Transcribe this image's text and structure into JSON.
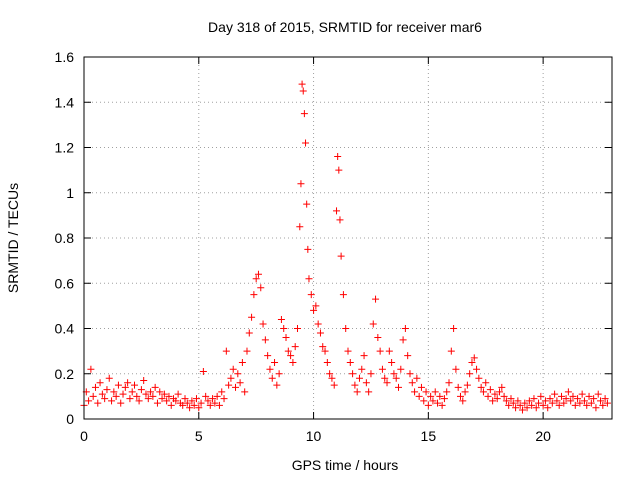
{
  "chart_data": {
    "type": "scatter",
    "title": "Day 318 of 2015, SRMTID for receiver mar6",
    "xlabel": "GPS time / hours",
    "ylabel": "SRMTID / TECUs",
    "xlim": [
      0,
      23
    ],
    "ylim": [
      0,
      1.6
    ],
    "xticks": [
      0,
      5,
      10,
      15,
      20
    ],
    "yticks": [
      0,
      0.2,
      0.4,
      0.6,
      0.8,
      1,
      1.2,
      1.4,
      1.6
    ],
    "xtick_labels": [
      "0",
      "5",
      "10",
      "15",
      "20"
    ],
    "ytick_labels": [
      "0",
      "0.2",
      "0.4",
      "0.6",
      "0.8",
      "1",
      "1.2",
      "1.4",
      "1.6"
    ],
    "grid": true,
    "marker": "+",
    "color": "#ff0000",
    "series": [
      {
        "name": "mar6",
        "points": [
          [
            0.0,
            0.06
          ],
          [
            0.1,
            0.12
          ],
          [
            0.2,
            0.08
          ],
          [
            0.3,
            0.22
          ],
          [
            0.4,
            0.1
          ],
          [
            0.5,
            0.14
          ],
          [
            0.6,
            0.07
          ],
          [
            0.7,
            0.16
          ],
          [
            0.8,
            0.11
          ],
          [
            0.9,
            0.09
          ],
          [
            1.0,
            0.13
          ],
          [
            1.1,
            0.18
          ],
          [
            1.2,
            0.08
          ],
          [
            1.3,
            0.12
          ],
          [
            1.4,
            0.1
          ],
          [
            1.5,
            0.15
          ],
          [
            1.6,
            0.07
          ],
          [
            1.7,
            0.11
          ],
          [
            1.8,
            0.14
          ],
          [
            1.9,
            0.16
          ],
          [
            2.0,
            0.09
          ],
          [
            2.1,
            0.12
          ],
          [
            2.2,
            0.15
          ],
          [
            2.3,
            0.1
          ],
          [
            2.4,
            0.08
          ],
          [
            2.5,
            0.13
          ],
          [
            2.6,
            0.17
          ],
          [
            2.7,
            0.11
          ],
          [
            2.8,
            0.09
          ],
          [
            2.9,
            0.12
          ],
          [
            3.0,
            0.1
          ],
          [
            3.1,
            0.14
          ],
          [
            3.2,
            0.07
          ],
          [
            3.3,
            0.12
          ],
          [
            3.4,
            0.09
          ],
          [
            3.5,
            0.11
          ],
          [
            3.6,
            0.08
          ],
          [
            3.7,
            0.1
          ],
          [
            3.8,
            0.06
          ],
          [
            3.9,
            0.09
          ],
          [
            4.0,
            0.08
          ],
          [
            4.1,
            0.11
          ],
          [
            4.2,
            0.07
          ],
          [
            4.3,
            0.06
          ],
          [
            4.4,
            0.09
          ],
          [
            4.5,
            0.07
          ],
          [
            4.6,
            0.05
          ],
          [
            4.7,
            0.08
          ],
          [
            4.8,
            0.06
          ],
          [
            4.9,
            0.09
          ],
          [
            5.0,
            0.05
          ],
          [
            5.1,
            0.07
          ],
          [
            5.2,
            0.21
          ],
          [
            5.3,
            0.1
          ],
          [
            5.4,
            0.08
          ],
          [
            5.5,
            0.06
          ],
          [
            5.6,
            0.09
          ],
          [
            5.7,
            0.07
          ],
          [
            5.8,
            0.1
          ],
          [
            5.9,
            0.06
          ],
          [
            6.0,
            0.12
          ],
          [
            6.1,
            0.09
          ],
          [
            6.2,
            0.3
          ],
          [
            6.3,
            0.15
          ],
          [
            6.4,
            0.18
          ],
          [
            6.5,
            0.22
          ],
          [
            6.6,
            0.14
          ],
          [
            6.7,
            0.2
          ],
          [
            6.8,
            0.16
          ],
          [
            6.9,
            0.25
          ],
          [
            7.0,
            0.12
          ],
          [
            7.1,
            0.3
          ],
          [
            7.2,
            0.38
          ],
          [
            7.3,
            0.45
          ],
          [
            7.4,
            0.55
          ],
          [
            7.5,
            0.62
          ],
          [
            7.6,
            0.64
          ],
          [
            7.7,
            0.58
          ],
          [
            7.8,
            0.42
          ],
          [
            7.9,
            0.35
          ],
          [
            8.0,
            0.28
          ],
          [
            8.1,
            0.22
          ],
          [
            8.2,
            0.18
          ],
          [
            8.3,
            0.25
          ],
          [
            8.4,
            0.15
          ],
          [
            8.5,
            0.2
          ],
          [
            8.6,
            0.44
          ],
          [
            8.7,
            0.4
          ],
          [
            8.8,
            0.36
          ],
          [
            8.9,
            0.3
          ],
          [
            9.0,
            0.28
          ],
          [
            9.1,
            0.25
          ],
          [
            9.2,
            0.32
          ],
          [
            9.3,
            0.4
          ],
          [
            9.4,
            0.85
          ],
          [
            9.45,
            1.04
          ],
          [
            9.5,
            1.48
          ],
          [
            9.55,
            1.45
          ],
          [
            9.6,
            1.35
          ],
          [
            9.65,
            1.22
          ],
          [
            9.7,
            0.95
          ],
          [
            9.75,
            0.75
          ],
          [
            9.8,
            0.62
          ],
          [
            9.9,
            0.55
          ],
          [
            10.0,
            0.48
          ],
          [
            10.1,
            0.5
          ],
          [
            10.2,
            0.42
          ],
          [
            10.3,
            0.38
          ],
          [
            10.4,
            0.32
          ],
          [
            10.5,
            0.3
          ],
          [
            10.6,
            0.25
          ],
          [
            10.7,
            0.2
          ],
          [
            10.8,
            0.18
          ],
          [
            10.9,
            0.15
          ],
          [
            11.0,
            0.92
          ],
          [
            11.05,
            1.16
          ],
          [
            11.1,
            1.1
          ],
          [
            11.15,
            0.88
          ],
          [
            11.2,
            0.72
          ],
          [
            11.3,
            0.55
          ],
          [
            11.4,
            0.4
          ],
          [
            11.5,
            0.3
          ],
          [
            11.6,
            0.25
          ],
          [
            11.7,
            0.2
          ],
          [
            11.8,
            0.15
          ],
          [
            11.9,
            0.12
          ],
          [
            12.0,
            0.18
          ],
          [
            12.1,
            0.22
          ],
          [
            12.2,
            0.28
          ],
          [
            12.3,
            0.16
          ],
          [
            12.4,
            0.12
          ],
          [
            12.5,
            0.2
          ],
          [
            12.6,
            0.42
          ],
          [
            12.7,
            0.53
          ],
          [
            12.8,
            0.36
          ],
          [
            12.9,
            0.3
          ],
          [
            13.0,
            0.22
          ],
          [
            13.1,
            0.18
          ],
          [
            13.2,
            0.16
          ],
          [
            13.3,
            0.3
          ],
          [
            13.4,
            0.25
          ],
          [
            13.5,
            0.2
          ],
          [
            13.6,
            0.18
          ],
          [
            13.7,
            0.14
          ],
          [
            13.8,
            0.22
          ],
          [
            13.9,
            0.35
          ],
          [
            14.0,
            0.4
          ],
          [
            14.1,
            0.28
          ],
          [
            14.2,
            0.2
          ],
          [
            14.3,
            0.16
          ],
          [
            14.4,
            0.12
          ],
          [
            14.5,
            0.18
          ],
          [
            14.6,
            0.1
          ],
          [
            14.7,
            0.14
          ],
          [
            14.8,
            0.08
          ],
          [
            14.9,
            0.12
          ],
          [
            15.0,
            0.06
          ],
          [
            15.1,
            0.1
          ],
          [
            15.2,
            0.08
          ],
          [
            15.3,
            0.12
          ],
          [
            15.4,
            0.07
          ],
          [
            15.5,
            0.1
          ],
          [
            15.6,
            0.06
          ],
          [
            15.7,
            0.09
          ],
          [
            15.8,
            0.12
          ],
          [
            15.9,
            0.16
          ],
          [
            16.0,
            0.3
          ],
          [
            16.1,
            0.4
          ],
          [
            16.2,
            0.22
          ],
          [
            16.3,
            0.14
          ],
          [
            16.4,
            0.1
          ],
          [
            16.5,
            0.08
          ],
          [
            16.6,
            0.12
          ],
          [
            16.7,
            0.15
          ],
          [
            16.8,
            0.2
          ],
          [
            16.9,
            0.25
          ],
          [
            17.0,
            0.27
          ],
          [
            17.1,
            0.22
          ],
          [
            17.2,
            0.18
          ],
          [
            17.3,
            0.14
          ],
          [
            17.4,
            0.12
          ],
          [
            17.5,
            0.16
          ],
          [
            17.6,
            0.1
          ],
          [
            17.7,
            0.13
          ],
          [
            17.8,
            0.08
          ],
          [
            17.9,
            0.11
          ],
          [
            18.0,
            0.09
          ],
          [
            18.1,
            0.12
          ],
          [
            18.2,
            0.14
          ],
          [
            18.3,
            0.1
          ],
          [
            18.4,
            0.08
          ],
          [
            18.5,
            0.06
          ],
          [
            18.6,
            0.09
          ],
          [
            18.7,
            0.07
          ],
          [
            18.8,
            0.05
          ],
          [
            18.9,
            0.08
          ],
          [
            19.0,
            0.06
          ],
          [
            19.1,
            0.04
          ],
          [
            19.2,
            0.07
          ],
          [
            19.3,
            0.05
          ],
          [
            19.4,
            0.08
          ],
          [
            19.5,
            0.06
          ],
          [
            19.6,
            0.09
          ],
          [
            19.7,
            0.05
          ],
          [
            19.8,
            0.07
          ],
          [
            19.9,
            0.1
          ],
          [
            20.0,
            0.06
          ],
          [
            20.1,
            0.08
          ],
          [
            20.2,
            0.05
          ],
          [
            20.3,
            0.09
          ],
          [
            20.4,
            0.07
          ],
          [
            20.5,
            0.11
          ],
          [
            20.6,
            0.08
          ],
          [
            20.7,
            0.06
          ],
          [
            20.8,
            0.1
          ],
          [
            20.9,
            0.07
          ],
          [
            21.0,
            0.09
          ],
          [
            21.1,
            0.12
          ],
          [
            21.2,
            0.08
          ],
          [
            21.3,
            0.1
          ],
          [
            21.4,
            0.06
          ],
          [
            21.5,
            0.09
          ],
          [
            21.6,
            0.07
          ],
          [
            21.7,
            0.11
          ],
          [
            21.8,
            0.08
          ],
          [
            21.9,
            0.06
          ],
          [
            22.0,
            0.1
          ],
          [
            22.1,
            0.07
          ],
          [
            22.2,
            0.09
          ],
          [
            22.3,
            0.05
          ],
          [
            22.4,
            0.11
          ],
          [
            22.5,
            0.08
          ],
          [
            22.6,
            0.06
          ],
          [
            22.7,
            0.09
          ],
          [
            22.8,
            0.07
          ]
        ]
      }
    ]
  }
}
